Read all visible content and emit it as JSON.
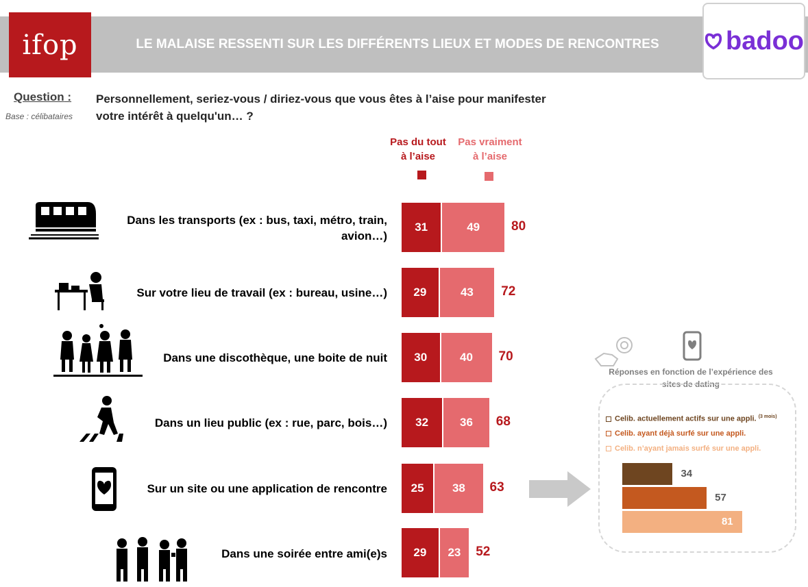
{
  "header": {
    "logo_text": "ifop",
    "title": "LE MALAISE RESSENTI SUR LES DIFFÉRENTS LIEUX ET MODES DE RENCONTRES",
    "brand": "badoo"
  },
  "question": {
    "label": "Question",
    "colon": " :",
    "base": "Base : célibataires",
    "text_line1": "Personnellement, seriez-vous / diriez-vous que vous êtes à l’aise pour manifester",
    "text_line2": "votre intérêt à quelqu'un… ?"
  },
  "legend": {
    "dark_line1": "Pas du tout",
    "dark_line2": "à l’aise",
    "light_line1": "Pas vraiment",
    "light_line2": "à l’aise"
  },
  "colors": {
    "dark": "#b7191d",
    "light": "#e56a6e",
    "sub_active": "#6e4520",
    "sub_surfed": "#c4591f",
    "sub_never": "#f3b081"
  },
  "chart_data": [
    {
      "type": "bar",
      "orientation": "horizontal",
      "stacked": true,
      "categories": [
        "Dans les transports (ex : bus, taxi, métro, train, avion…)",
        "Sur votre lieu de travail (ex : bureau, usine…)",
        "Dans une discothèque, une boite de nuit",
        "Dans un lieu public (ex : rue, parc, bois…)",
        "Sur un site ou une application de rencontre",
        "Dans une soirée entre ami(e)s"
      ],
      "series": [
        {
          "name": "Pas du tout à l’aise",
          "values": [
            31,
            29,
            30,
            32,
            25,
            29
          ]
        },
        {
          "name": "Pas vraiment à l’aise",
          "values": [
            49,
            43,
            40,
            36,
            38,
            23
          ]
        }
      ],
      "totals": [
        80,
        72,
        70,
        68,
        63,
        52
      ]
    },
    {
      "type": "bar",
      "orientation": "horizontal",
      "title": "Réponses en fonction de l’expérience des sites de dating",
      "categories": [
        "Celib. actuellement actifs sur une appli.",
        "Celib. ayant déjà surfé sur une appli.",
        "Celib. n’ayant jamais surfé sur une appli."
      ],
      "category_note": "(3 mois)",
      "values": [
        34,
        57,
        81
      ]
    }
  ],
  "icons": [
    "train-icon",
    "office-desk-icon",
    "dancers-icon",
    "pedestrian-crossing-icon",
    "heart-phone-icon",
    "party-friends-icon",
    "handshake-icon",
    "dating-phone-icon",
    "arrow-right-icon"
  ]
}
